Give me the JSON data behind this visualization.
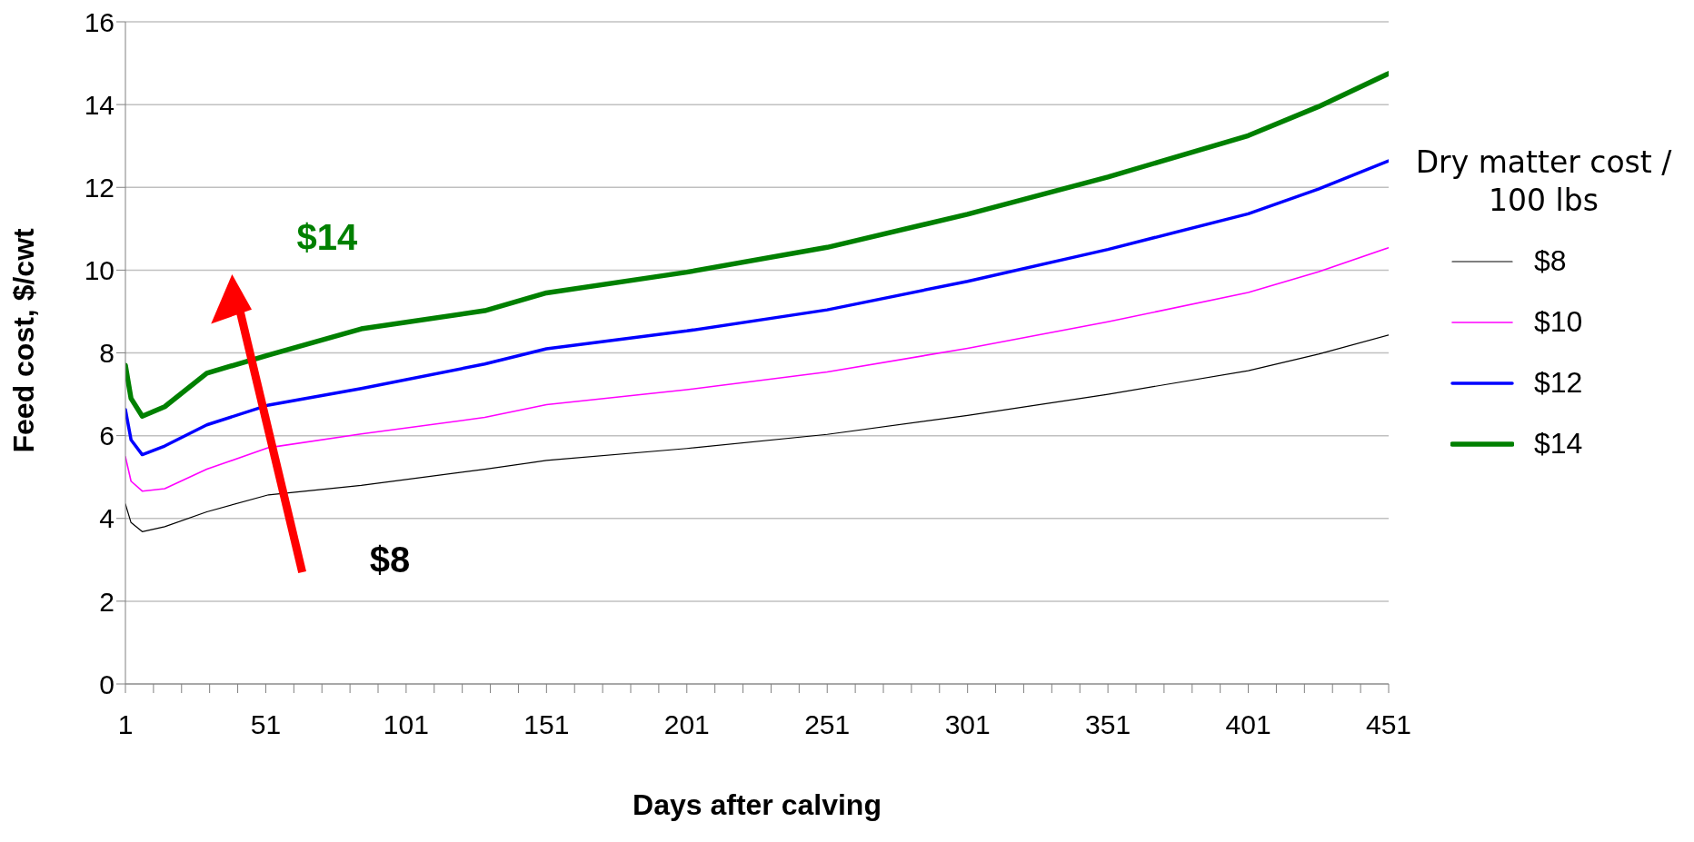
{
  "chart_data": {
    "type": "line",
    "xlabel": "Days after calving",
    "ylabel": "Feed cost, $/cwt",
    "legend_title": "Dry matter cost / 100 lbs",
    "legend": "right",
    "grid": "y",
    "marker": "none",
    "line_style": "solid",
    "x": [
      1,
      3,
      7,
      15,
      30,
      52,
      85,
      129,
      151,
      201,
      251,
      301,
      351,
      401,
      426,
      451
    ],
    "series": [
      {
        "name": "$8",
        "color": "#000000",
        "values": [
          4.35,
          3.9,
          3.68,
          3.8,
          4.16,
          4.57,
          4.8,
          5.19,
          5.4,
          5.69,
          6.03,
          6.49,
          7.0,
          7.57,
          7.97,
          8.43
        ]
      },
      {
        "name": "$10",
        "color": "#ff00ff",
        "values": [
          5.49,
          4.9,
          4.66,
          4.72,
          5.19,
          5.71,
          6.04,
          6.44,
          6.75,
          7.11,
          7.54,
          8.11,
          8.75,
          9.46,
          9.96,
          10.54
        ]
      },
      {
        "name": "$12",
        "color": "#0000ff",
        "values": [
          6.63,
          5.9,
          5.54,
          5.75,
          6.26,
          6.74,
          7.14,
          7.73,
          8.1,
          8.53,
          9.04,
          9.73,
          10.5,
          11.36,
          11.96,
          12.64
        ]
      },
      {
        "name": "$14",
        "color": "#008000",
        "values": [
          7.7,
          6.9,
          6.47,
          6.7,
          7.51,
          7.95,
          8.58,
          9.02,
          9.45,
          9.95,
          10.55,
          11.35,
          12.25,
          13.25,
          13.95,
          14.75
        ]
      }
    ],
    "xlim": [
      1,
      451
    ],
    "xticks": [
      1,
      {
        "value": 11,
        "label": null
      },
      {
        "value": 21,
        "label": null
      },
      {
        "value": 31,
        "label": null
      },
      {
        "value": 41,
        "label": null
      },
      51,
      {
        "value": 61,
        "label": null
      },
      {
        "value": 71,
        "label": null
      },
      {
        "value": 81,
        "label": null
      },
      {
        "value": 91,
        "label": null
      },
      101,
      {
        "value": 111,
        "label": null
      },
      {
        "value": 121,
        "label": null
      },
      {
        "value": 131,
        "label": null
      },
      {
        "value": 141,
        "label": null
      },
      151,
      {
        "value": 161,
        "label": null
      },
      {
        "value": 171,
        "label": null
      },
      {
        "value": 181,
        "label": null
      },
      {
        "value": 191,
        "label": null
      },
      201,
      {
        "value": 211,
        "label": null
      },
      {
        "value": 221,
        "label": null
      },
      {
        "value": 231,
        "label": null
      },
      {
        "value": 241,
        "label": null
      },
      251,
      {
        "value": 261,
        "label": null
      },
      {
        "value": 271,
        "label": null
      },
      {
        "value": 281,
        "label": null
      },
      {
        "value": 291,
        "label": null
      },
      301,
      {
        "value": 311,
        "label": null
      },
      {
        "value": 321,
        "label": null
      },
      {
        "value": 331,
        "label": null
      },
      {
        "value": 341,
        "label": null
      },
      351,
      {
        "value": 361,
        "label": null
      },
      {
        "value": 371,
        "label": null
      },
      {
        "value": 381,
        "label": null
      },
      {
        "value": 391,
        "label": null
      },
      401,
      {
        "value": 411,
        "label": null
      },
      {
        "value": 421,
        "label": null
      },
      {
        "value": 431,
        "label": null
      },
      {
        "value": 441,
        "label": null
      },
      451
    ],
    "ylim": [
      0,
      16
    ],
    "yticks": [
      0,
      2,
      4,
      6,
      8,
      10,
      12,
      14,
      16
    ],
    "annotations": [
      "$14",
      "$8"
    ]
  }
}
